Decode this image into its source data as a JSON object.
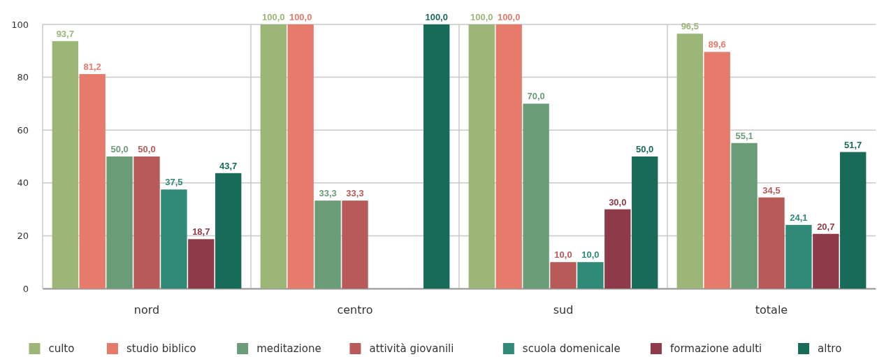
{
  "chart_data": {
    "type": "bar",
    "categories": [
      "nord",
      "centro",
      "sud",
      "totale"
    ],
    "series": [
      {
        "name": "culto",
        "color": "#9bb677",
        "values": [
          93.7,
          100,
          100,
          96.5
        ],
        "value_labels": [
          "93,7",
          "100,0",
          "100,0",
          "96,5"
        ]
      },
      {
        "name": "studio biblico",
        "color": "#e67b6b",
        "values": [
          81.2,
          100,
          100,
          89.6
        ],
        "value_labels": [
          "81,2",
          "100,0",
          "100,0",
          "89,6"
        ]
      },
      {
        "name": "meditazione",
        "color": "#6b9c78",
        "values": [
          50,
          33.3,
          70,
          55.1
        ],
        "value_labels": [
          "50,0",
          "33,3",
          "70,0",
          "55,1"
        ]
      },
      {
        "name": "attività giovanili",
        "color": "#b85a57",
        "values": [
          50,
          33.3,
          10,
          34.5
        ],
        "value_labels": [
          "50,0",
          "33,3",
          "10,0",
          "34,5"
        ]
      },
      {
        "name": "scuola domenicale",
        "color": "#2f8a77",
        "values": [
          37.5,
          0,
          10,
          24.1
        ],
        "value_labels": [
          "37,5",
          null,
          "10,0",
          "24,1"
        ]
      },
      {
        "name": "formazione adulti",
        "color": "#8f3a48",
        "values": [
          18.7,
          0,
          30,
          20.7
        ],
        "value_labels": [
          "18,7",
          null,
          "30,0",
          "20,7"
        ]
      },
      {
        "name": "altro",
        "color": "#176b58",
        "values": [
          43.7,
          100,
          50,
          51.7
        ],
        "value_labels": [
          "43,7",
          "100,0",
          "50,0",
          "51,7"
        ]
      }
    ],
    "ylim": [
      0,
      100
    ],
    "yticks": [
      0,
      20,
      40,
      60,
      80,
      100
    ],
    "grid": true,
    "legend": "bottom"
  }
}
